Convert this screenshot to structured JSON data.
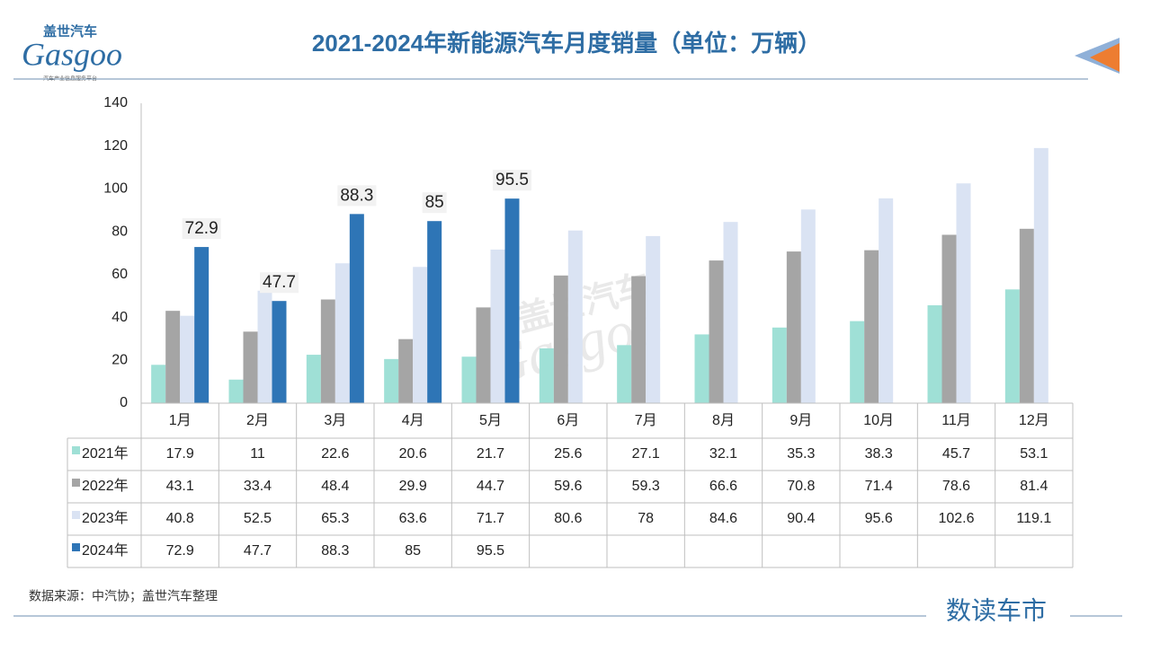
{
  "header": {
    "logo": {
      "cn": "盖世汽车",
      "en": "Gasgoo",
      "tagline": "汽车产业信息服务平台"
    }
  },
  "chart_data": {
    "type": "bar",
    "title": "2021-2024年新能源汽车月度销量（单位：万辆）",
    "categories": [
      "1月",
      "2月",
      "3月",
      "4月",
      "5月",
      "6月",
      "7月",
      "8月",
      "9月",
      "10月",
      "11月",
      "12月"
    ],
    "series": [
      {
        "name": "2021年",
        "color": "#9fe0d6",
        "values": [
          17.9,
          11,
          22.6,
          20.6,
          21.7,
          25.6,
          27.1,
          32.1,
          35.3,
          38.3,
          45.7,
          53.1
        ]
      },
      {
        "name": "2022年",
        "color": "#a5a5a5",
        "values": [
          43.1,
          33.4,
          48.4,
          29.9,
          44.7,
          59.6,
          59.3,
          66.6,
          70.8,
          71.4,
          78.6,
          81.4
        ]
      },
      {
        "name": "2023年",
        "color": "#dae3f3",
        "values": [
          40.8,
          52.5,
          65.3,
          63.6,
          71.7,
          80.6,
          78,
          84.6,
          90.4,
          95.6,
          102.6,
          119.1
        ]
      },
      {
        "name": "2024年",
        "color": "#2e75b6",
        "data_labels": true,
        "values": [
          72.9,
          47.7,
          88.3,
          85,
          95.5,
          null,
          null,
          null,
          null,
          null,
          null,
          null
        ]
      }
    ],
    "ylim": [
      0,
      140
    ],
    "yticks": [
      0,
      20,
      40,
      60,
      80,
      100,
      120,
      140
    ],
    "grid": false,
    "data_table": true
  },
  "footer": {
    "source": "数据来源：中汽协；盖世汽车整理",
    "brand": "数读车市"
  }
}
